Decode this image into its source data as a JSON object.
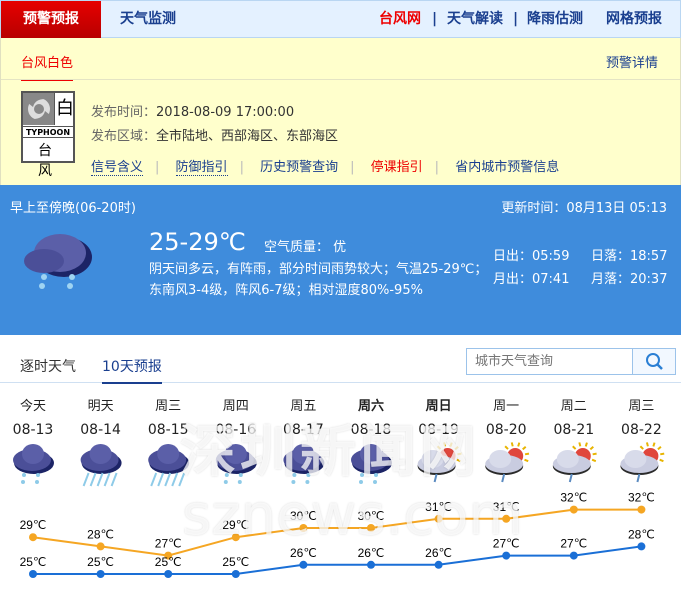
{
  "nav": {
    "active": "预警预报",
    "item1": "天气监测",
    "right": [
      "台风网",
      "天气解读",
      "降雨估测",
      "网格预报"
    ],
    "colors": {
      "active_bg": "#d00000",
      "link": "#1a3f8f",
      "red_link": "#e00000"
    }
  },
  "warning": {
    "tab": "台风白色",
    "detail_link": "预警详情",
    "icon": {
      "name": "typhoon-white-icon",
      "level": "白",
      "en": "TYPHOON",
      "cn": "台 风"
    },
    "time_label": "发布时间：",
    "time": "2018-08-09 17:00:00",
    "area_label": "发布区域：",
    "area": "全市陆地、西部海区、东部海区",
    "links": [
      "信号含义",
      "防御指引",
      "历史预警查询",
      "停课指引",
      "省内城市预警信息"
    ]
  },
  "now": {
    "period": "早上至傍晚(06-20时)",
    "update": "更新时间：08月13日 05:13",
    "temp": "25-29℃",
    "aq": "空气质量： 优",
    "icon": "rain-cloud-icon",
    "desc": "阴天间多云，有阵雨，部分时间雨势较大；气温25-29℃；东南风3-4级，阵风6-7级；相对湿度80%-95%",
    "sunrise": "日出：05:59",
    "sunset": "日落：18:57",
    "moonrise": "月出：07:41",
    "moonset": "月落：20:37",
    "bg": "#3f8cdc"
  },
  "tabs": [
    "逐时天气",
    "10天预报"
  ],
  "active_tab": "10天预报",
  "search": {
    "placeholder": "城市天气查询",
    "icon": "search-icon"
  },
  "watermark": {
    "line1": "深圳新闻网",
    "line2": "sznews.com"
  },
  "chart_data": {
    "type": "line",
    "categories": [
      "08-13",
      "08-14",
      "08-15",
      "08-16",
      "08-17",
      "08-18",
      "08-19",
      "08-20",
      "08-21",
      "08-22"
    ],
    "weekdays": [
      "今天",
      "明天",
      "周三",
      "周四",
      "周五",
      "周六",
      "周日",
      "周一",
      "周二",
      "周三"
    ],
    "icons": [
      "shower",
      "heavy-rain",
      "heavy-rain",
      "shower",
      "shower",
      "shower",
      "partly-cloudy-shower",
      "partly-cloudy-shower",
      "partly-cloudy-shower",
      "partly-cloudy-shower"
    ],
    "series": [
      {
        "values": [
          29,
          28,
          27,
          29,
          30,
          30,
          31,
          31,
          32,
          32
        ],
        "color": "#f5a623"
      },
      {
        "values": [
          25,
          25,
          25,
          25,
          26,
          26,
          26,
          27,
          27,
          28
        ],
        "color": "#1a6fd6"
      }
    ],
    "unit": "℃"
  }
}
